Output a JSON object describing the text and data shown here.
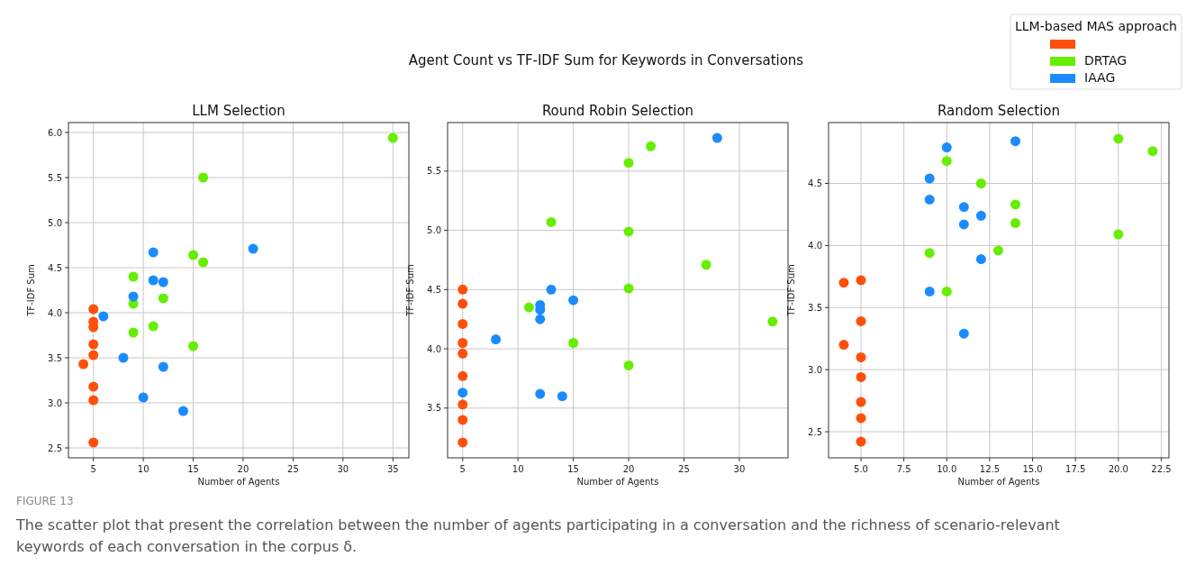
{
  "chart_data": [
    {
      "type": "scatter",
      "title": "LLM Selection",
      "xlabel": "Number of Agents",
      "ylabel": "TF-IDF Sum",
      "annotations": [
        "Agent Count vs TF-IDF Sum for Keywords in Conversations",
        "FIGURE 13",
        "The scatter plot that present the correlation between the number of agents participating in a conversation and the richness of scenario-relevant keywords of each conversation in the corpus δ."
      ],
      "xlim": [
        2.5,
        36.6
      ],
      "xticks": [
        5,
        10,
        15,
        20,
        25,
        30,
        35
      ],
      "ylim": [
        2.39,
        6.11
      ],
      "yticks": [
        {
          "value": 2.5,
          "label": "2.5"
        },
        {
          "value": 3,
          "label": "3.0"
        },
        {
          "value": 3.5,
          "label": "3.5"
        },
        {
          "value": 4,
          "label": "4.0"
        },
        {
          "value": 4.5,
          "label": "4.5"
        },
        {
          "value": 5,
          "label": "5.0"
        },
        {
          "value": 5.5,
          "label": "5.5"
        },
        {
          "value": 6,
          "label": "6.0"
        }
      ],
      "grid": true,
      "marker": "circle",
      "series": [
        {
          "color": "#ff4f0a",
          "x": [
            4,
            5,
            5,
            5,
            5,
            5,
            5,
            5,
            5
          ],
          "values": [
            3.43,
            4.04,
            3.9,
            3.84,
            3.65,
            3.53,
            3.18,
            3.03,
            2.56
          ]
        },
        {
          "color": "#66ee00",
          "x": [
            9,
            9,
            9,
            11,
            12,
            15,
            15,
            16,
            16,
            35
          ],
          "values": [
            4.4,
            4.1,
            3.78,
            3.85,
            4.16,
            4.64,
            3.63,
            4.56,
            5.5,
            5.94
          ]
        },
        {
          "color": "#1a8cff",
          "x": [
            6,
            8,
            9,
            10,
            11,
            11,
            12,
            12,
            14,
            21
          ],
          "values": [
            3.96,
            3.5,
            4.18,
            3.06,
            4.67,
            4.36,
            4.34,
            3.4,
            2.91,
            4.71
          ]
        }
      ]
    },
    {
      "type": "scatter",
      "title": "Round Robin Selection",
      "xlabel": "Number of Agents",
      "ylabel": "TF-IDF Sum",
      "xlim": [
        3.64,
        34.4
      ],
      "xticks": [
        5,
        10,
        15,
        20,
        25,
        30
      ],
      "ylim": [
        3.08,
        5.91
      ],
      "yticks": [
        3.5,
        {
          "value": 4,
          "label": "4.0"
        },
        4.5,
        {
          "value": 5,
          "label": "5.0"
        },
        5.5
      ],
      "grid": true,
      "marker": "circle",
      "series": [
        {
          "color": "#ff4f0a",
          "x": [
            5,
            5,
            5,
            5,
            5,
            5,
            5,
            5,
            5
          ],
          "values": [
            4.5,
            4.38,
            4.21,
            4.05,
            3.96,
            3.77,
            3.53,
            3.4,
            3.21
          ]
        },
        {
          "color": "#66ee00",
          "x": [
            11,
            13,
            15,
            20,
            20,
            20,
            20,
            22,
            27,
            33
          ],
          "values": [
            4.35,
            5.07,
            4.05,
            5.57,
            4.99,
            4.51,
            3.86,
            5.71,
            4.71,
            4.23
          ]
        },
        {
          "color": "#1a8cff",
          "x": [
            5,
            8,
            12,
            12,
            12,
            12,
            13,
            14,
            15,
            28
          ],
          "values": [
            3.63,
            4.08,
            4.37,
            4.33,
            4.25,
            3.62,
            4.5,
            3.6,
            4.41,
            5.78
          ]
        }
      ]
    },
    {
      "type": "scatter",
      "title": "Random Selection",
      "xlabel": "Number of Agents",
      "ylabel": "TF-IDF Sum",
      "legend": "top right",
      "legend_title": "LLM-based MAS approach",
      "xlim": [
        3.11,
        22.95
      ],
      "xticks": [
        {
          "value": 5,
          "label": "5.0"
        },
        7.5,
        {
          "value": 10,
          "label": "10.0"
        },
        12.5,
        {
          "value": 15,
          "label": "15.0"
        },
        17.5,
        {
          "value": 20,
          "label": "20.0"
        },
        22.5
      ],
      "ylim": [
        2.29,
        4.99
      ],
      "yticks": [
        2.5,
        {
          "value": 3,
          "label": "3.0"
        },
        3.5,
        {
          "value": 4,
          "label": "4.0"
        },
        4.5
      ],
      "grid": true,
      "marker": "circle",
      "series": [
        {
          "color": "#ff4f0a",
          "x": [
            4,
            5,
            5,
            4,
            5,
            5,
            5,
            5,
            5
          ],
          "values": [
            3.7,
            3.72,
            3.39,
            3.2,
            3.1,
            2.94,
            2.74,
            2.61,
            2.42
          ]
        },
        {
          "name": "DRTAG",
          "color": "#66ee00",
          "x": [
            9,
            10,
            10,
            12,
            13,
            14,
            14,
            20,
            20,
            22
          ],
          "values": [
            3.94,
            4.68,
            3.63,
            4.5,
            3.96,
            4.33,
            4.18,
            4.86,
            4.09,
            4.76
          ]
        },
        {
          "name": "IAAG",
          "color": "#1a8cff",
          "x": [
            9,
            9,
            9,
            10,
            11,
            11,
            11,
            12,
            12,
            14
          ],
          "values": [
            3.63,
            4.37,
            4.54,
            4.79,
            4.31,
            4.17,
            3.29,
            4.24,
            3.89,
            4.84
          ]
        }
      ]
    }
  ]
}
